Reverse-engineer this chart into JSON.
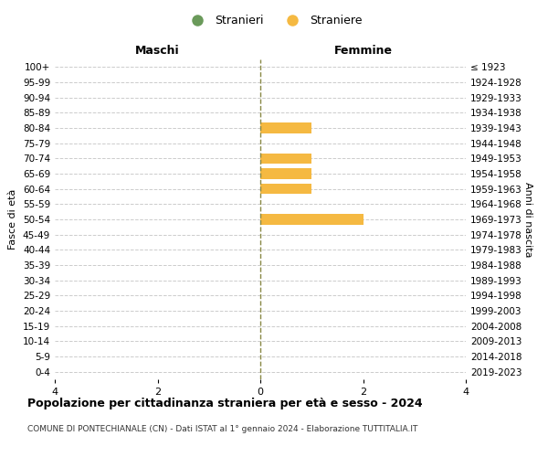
{
  "age_groups": [
    "100+",
    "95-99",
    "90-94",
    "85-89",
    "80-84",
    "75-79",
    "70-74",
    "65-69",
    "60-64",
    "55-59",
    "50-54",
    "45-49",
    "40-44",
    "35-39",
    "30-34",
    "25-29",
    "20-24",
    "15-19",
    "10-14",
    "5-9",
    "0-4"
  ],
  "birth_years": [
    "≤ 1923",
    "1924-1928",
    "1929-1933",
    "1934-1938",
    "1939-1943",
    "1944-1948",
    "1949-1953",
    "1954-1958",
    "1959-1963",
    "1964-1968",
    "1969-1973",
    "1974-1978",
    "1979-1983",
    "1984-1988",
    "1989-1993",
    "1994-1998",
    "1999-2003",
    "2004-2008",
    "2009-2013",
    "2014-2018",
    "2019-2023"
  ],
  "males": [
    0,
    0,
    0,
    0,
    0,
    0,
    0,
    0,
    0,
    0,
    0,
    0,
    0,
    0,
    0,
    0,
    0,
    0,
    0,
    0,
    0
  ],
  "females": [
    0,
    0,
    0,
    0,
    1,
    0,
    1,
    1,
    1,
    0,
    2,
    0,
    0,
    0,
    0,
    0,
    0,
    0,
    0,
    0,
    0
  ],
  "male_color": "#6a9a5a",
  "female_color": "#f5b942",
  "xlim": 4,
  "title": "Popolazione per cittadinanza straniera per età e sesso - 2024",
  "subtitle": "COMUNE DI PONTECHIANALE (CN) - Dati ISTAT al 1° gennaio 2024 - Elaborazione TUTTITALIA.IT",
  "left_label": "Maschi",
  "right_label": "Femmine",
  "left_axis_label": "Fasce di età",
  "right_axis_label": "Anni di nascita",
  "legend_male": "Stranieri",
  "legend_female": "Straniere",
  "background_color": "#ffffff",
  "grid_color": "#cccccc"
}
